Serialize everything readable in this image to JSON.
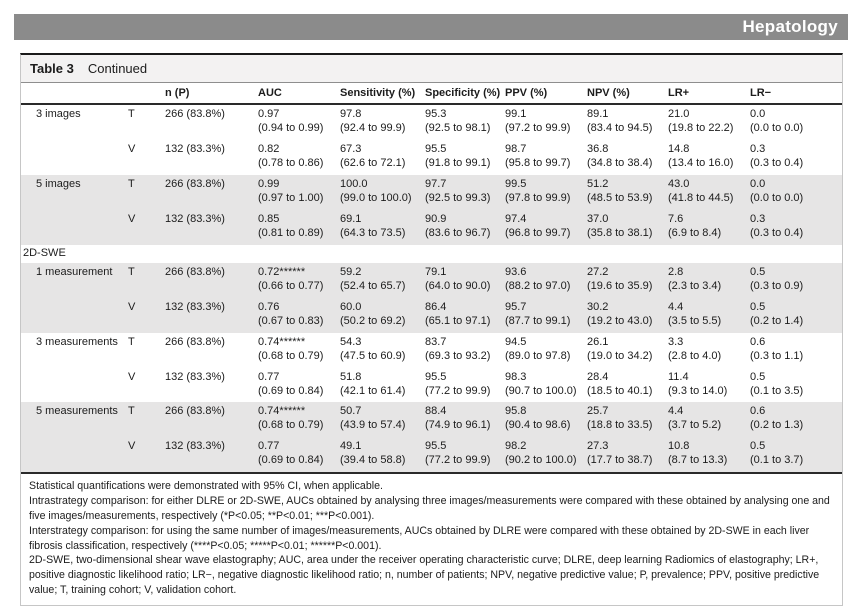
{
  "banner": {
    "title": "Hepatology"
  },
  "table": {
    "caption_label": "Table 3",
    "caption_continued": "Continued",
    "columns": [
      "",
      "",
      "n (P)",
      "AUC",
      "Sensitivity (%)",
      "Specificity (%)",
      "PPV (%)",
      "NPV (%)",
      "LR+",
      "LR−"
    ],
    "rows": [
      {
        "type": "data",
        "shaded": false,
        "strategy": "3 images",
        "cohort": "T",
        "n": "266 (83.8%)",
        "auc": {
          "value": "0.97",
          "ci": "(0.94 to 0.99)"
        },
        "sensitivity": {
          "value": "97.8",
          "ci": "(92.4 to 99.9)"
        },
        "specificity": {
          "value": "95.3",
          "ci": "(92.5 to 98.1)"
        },
        "ppv": {
          "value": "99.1",
          "ci": "(97.2 to 99.9)"
        },
        "npv": {
          "value": "89.1",
          "ci": "(83.4 to 94.5)"
        },
        "lr_plus": {
          "value": "21.0",
          "ci": "(19.8 to 22.2)"
        },
        "lr_minus": {
          "value": "0.0",
          "ci": "(0.0 to 0.0)"
        }
      },
      {
        "type": "data",
        "shaded": false,
        "strategy": "",
        "cohort": "V",
        "n": "132 (83.3%)",
        "auc": {
          "value": "0.82",
          "ci": "(0.78 to 0.86)"
        },
        "sensitivity": {
          "value": "67.3",
          "ci": "(62.6 to 72.1)"
        },
        "specificity": {
          "value": "95.5",
          "ci": "(91.8 to 99.1)"
        },
        "ppv": {
          "value": "98.7",
          "ci": "(95.8 to 99.7)"
        },
        "npv": {
          "value": "36.8",
          "ci": "(34.8 to 38.4)"
        },
        "lr_plus": {
          "value": "14.8",
          "ci": "(13.4 to 16.0)"
        },
        "lr_minus": {
          "value": "0.3",
          "ci": "(0.3 to 0.4)"
        }
      },
      {
        "type": "data",
        "shaded": true,
        "strategy": "5 images",
        "cohort": "T",
        "n": "266 (83.8%)",
        "auc": {
          "value": "0.99",
          "ci": "(0.97 to 1.00)"
        },
        "sensitivity": {
          "value": "100.0",
          "ci": "(99.0 to 100.0)"
        },
        "specificity": {
          "value": "97.7",
          "ci": "(92.5 to 99.3)"
        },
        "ppv": {
          "value": "99.5",
          "ci": "(97.8 to 99.9)"
        },
        "npv": {
          "value": "51.2",
          "ci": "(48.5 to 53.9)"
        },
        "lr_plus": {
          "value": "43.0",
          "ci": "(41.8 to 44.5)"
        },
        "lr_minus": {
          "value": "0.0",
          "ci": "(0.0 to 0.0)"
        }
      },
      {
        "type": "data",
        "shaded": true,
        "strategy": "",
        "cohort": "V",
        "n": "132 (83.3%)",
        "auc": {
          "value": "0.85",
          "ci": "(0.81 to 0.89)"
        },
        "sensitivity": {
          "value": "69.1",
          "ci": "(64.3 to 73.5)"
        },
        "specificity": {
          "value": "90.9",
          "ci": "(83.6 to 96.7)"
        },
        "ppv": {
          "value": "97.4",
          "ci": "(96.8 to 99.7)"
        },
        "npv": {
          "value": "37.0",
          "ci": "(35.8 to 38.1)"
        },
        "lr_plus": {
          "value": "7.6",
          "ci": "(6.9 to 8.4)"
        },
        "lr_minus": {
          "value": "0.3",
          "ci": "(0.3 to 0.4)"
        }
      },
      {
        "type": "section",
        "shaded": false,
        "strategy": "2D-SWE"
      },
      {
        "type": "data",
        "shaded": true,
        "strategy": "1 measurement",
        "cohort": "T",
        "n": "266 (83.8%)",
        "auc": {
          "value": "0.72******",
          "ci": "(0.66 to 0.77)"
        },
        "sensitivity": {
          "value": "59.2",
          "ci": "(52.4 to 65.7)"
        },
        "specificity": {
          "value": "79.1",
          "ci": "(64.0 to 90.0)"
        },
        "ppv": {
          "value": "93.6",
          "ci": "(88.2 to 97.0)"
        },
        "npv": {
          "value": "27.2",
          "ci": "(19.6 to 35.9)"
        },
        "lr_plus": {
          "value": "2.8",
          "ci": "(2.3 to 3.4)"
        },
        "lr_minus": {
          "value": "0.5",
          "ci": "(0.3 to 0.9)"
        }
      },
      {
        "type": "data",
        "shaded": true,
        "strategy": "",
        "cohort": "V",
        "n": "132 (83.3%)",
        "auc": {
          "value": "0.76",
          "ci": "(0.67 to 0.83)"
        },
        "sensitivity": {
          "value": "60.0",
          "ci": "(50.2 to 69.2)"
        },
        "specificity": {
          "value": "86.4",
          "ci": "(65.1 to 97.1)"
        },
        "ppv": {
          "value": "95.7",
          "ci": "(87.7 to 99.1)"
        },
        "npv": {
          "value": "30.2",
          "ci": "(19.2 to 43.0)"
        },
        "lr_plus": {
          "value": "4.4",
          "ci": "(3.5 to 5.5)"
        },
        "lr_minus": {
          "value": "0.5",
          "ci": "(0.2 to 1.4)"
        }
      },
      {
        "type": "data",
        "shaded": false,
        "strategy": "3 measurements",
        "cohort": "T",
        "n": "266 (83.8%)",
        "auc": {
          "value": "0.74******",
          "ci": "(0.68 to 0.79)"
        },
        "sensitivity": {
          "value": "54.3",
          "ci": "(47.5 to 60.9)"
        },
        "specificity": {
          "value": "83.7",
          "ci": "(69.3 to 93.2)"
        },
        "ppv": {
          "value": "94.5",
          "ci": "(89.0 to 97.8)"
        },
        "npv": {
          "value": "26.1",
          "ci": "(19.0 to 34.2)"
        },
        "lr_plus": {
          "value": "3.3",
          "ci": "(2.8 to 4.0)"
        },
        "lr_minus": {
          "value": "0.6",
          "ci": "(0.3 to 1.1)"
        }
      },
      {
        "type": "data",
        "shaded": false,
        "strategy": "",
        "cohort": "V",
        "n": "132 (83.3%)",
        "auc": {
          "value": "0.77",
          "ci": "(0.69 to 0.84)"
        },
        "sensitivity": {
          "value": "51.8",
          "ci": "(42.1 to 61.4)"
        },
        "specificity": {
          "value": "95.5",
          "ci": "(77.2 to 99.9)"
        },
        "ppv": {
          "value": "98.3",
          "ci": "(90.7 to 100.0)"
        },
        "npv": {
          "value": "28.4",
          "ci": "(18.5 to 40.1)"
        },
        "lr_plus": {
          "value": "11.4",
          "ci": "(9.3 to 14.0)"
        },
        "lr_minus": {
          "value": "0.5",
          "ci": "(0.1 to 3.5)"
        }
      },
      {
        "type": "data",
        "shaded": true,
        "strategy": "5 measurements",
        "cohort": "T",
        "n": "266 (83.8%)",
        "auc": {
          "value": "0.74******",
          "ci": "(0.68 to 0.79)"
        },
        "sensitivity": {
          "value": "50.7",
          "ci": "(43.9 to 57.4)"
        },
        "specificity": {
          "value": "88.4",
          "ci": "(74.9 to 96.1)"
        },
        "ppv": {
          "value": "95.8",
          "ci": "(90.4 to 98.6)"
        },
        "npv": {
          "value": "25.7",
          "ci": "(18.8 to 33.5)"
        },
        "lr_plus": {
          "value": "4.4",
          "ci": "(3.7 to 5.2)"
        },
        "lr_minus": {
          "value": "0.6",
          "ci": "(0.2 to 1.3)"
        }
      },
      {
        "type": "data",
        "shaded": true,
        "strategy": "",
        "cohort": "V",
        "n": "132 (83.3%)",
        "auc": {
          "value": "0.77",
          "ci": "(0.69 to 0.84)"
        },
        "sensitivity": {
          "value": "49.1",
          "ci": "(39.4 to 58.8)"
        },
        "specificity": {
          "value": "95.5",
          "ci": "(77.2 to 99.9)"
        },
        "ppv": {
          "value": "98.2",
          "ci": "(90.2 to 100.0)"
        },
        "npv": {
          "value": "27.3",
          "ci": "(17.7 to 38.7)"
        },
        "lr_plus": {
          "value": "10.8",
          "ci": "(8.7 to 13.3)"
        },
        "lr_minus": {
          "value": "0.5",
          "ci": "(0.1 to 3.7)"
        }
      }
    ]
  },
  "footnotes": [
    "Statistical quantifications were demonstrated with 95% CI, when applicable.",
    "Intrastrategy comparison: for either DLRE or 2D-SWE, AUCs obtained by analysing three images/measurements were compared with these obtained by analysing one and five images/measurements, respectively (*P<0.05; **P<0.01; ***P<0.001).",
    "Interstrategy comparison: for using the same number of images/measurements, AUCs obtained by DLRE were compared with these obtained by 2D-SWE in each liver fibrosis classification, respectively (****P<0.05; *****P<0.01; ******P<0.001).",
    "2D-SWE, two-dimensional shear wave elastography; AUC, area under the receiver operating characteristic curve; DLRE, deep learning Radiomics of elastography; LR+, positive diagnostic likelihood ratio; LR−, negative diagnostic likelihood ratio; n, number of patients; NPV, negative predictive value; P, prevalence; PPV, positive predictive value; T, training cohort; V, validation cohort."
  ],
  "colors": {
    "banner_gray": "#8b8b8b",
    "row_shade_gray": "#e6e5e5",
    "rule_dark": "#2a2a2a"
  }
}
